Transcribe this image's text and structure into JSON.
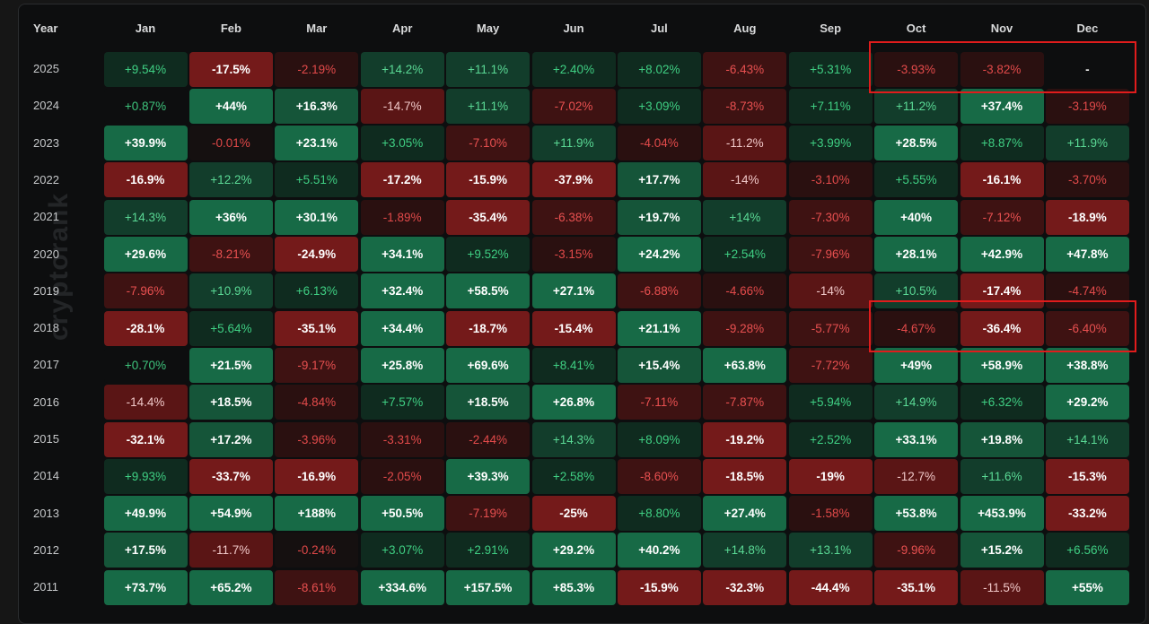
{
  "chart_data": {
    "type": "table",
    "title": "",
    "row_header_label": "Year",
    "columns": [
      "Jan",
      "Feb",
      "Mar",
      "Apr",
      "May",
      "Jun",
      "Jul",
      "Aug",
      "Sep",
      "Oct",
      "Nov",
      "Dec"
    ],
    "rows": [
      {
        "year": "2025",
        "values": [
          "+9.54%",
          "-17.5%",
          "-2.19%",
          "+14.2%",
          "+11.1%",
          "+2.40%",
          "+8.02%",
          "-6.43%",
          "+5.31%",
          "-3.93%",
          "-3.82%",
          "-"
        ]
      },
      {
        "year": "2024",
        "values": [
          "+0.87%",
          "+44%",
          "+16.3%",
          "-14.7%",
          "+11.1%",
          "-7.02%",
          "+3.09%",
          "-8.73%",
          "+7.11%",
          "+11.2%",
          "+37.4%",
          "-3.19%"
        ]
      },
      {
        "year": "2023",
        "values": [
          "+39.9%",
          "-0.01%",
          "+23.1%",
          "+3.05%",
          "-7.10%",
          "+11.9%",
          "-4.04%",
          "-11.2%",
          "+3.99%",
          "+28.5%",
          "+8.87%",
          "+11.9%"
        ]
      },
      {
        "year": "2022",
        "values": [
          "-16.9%",
          "+12.2%",
          "+5.51%",
          "-17.2%",
          "-15.9%",
          "-37.9%",
          "+17.7%",
          "-14%",
          "-3.10%",
          "+5.55%",
          "-16.1%",
          "-3.70%"
        ]
      },
      {
        "year": "2021",
        "values": [
          "+14.3%",
          "+36%",
          "+30.1%",
          "-1.89%",
          "-35.4%",
          "-6.38%",
          "+19.7%",
          "+14%",
          "-7.30%",
          "+40%",
          "-7.12%",
          "-18.9%"
        ]
      },
      {
        "year": "2020",
        "values": [
          "+29.6%",
          "-8.21%",
          "-24.9%",
          "+34.1%",
          "+9.52%",
          "-3.15%",
          "+24.2%",
          "+2.54%",
          "-7.96%",
          "+28.1%",
          "+42.9%",
          "+47.8%"
        ]
      },
      {
        "year": "2019",
        "values": [
          "-7.96%",
          "+10.9%",
          "+6.13%",
          "+32.4%",
          "+58.5%",
          "+27.1%",
          "-6.88%",
          "-4.66%",
          "-14%",
          "+10.5%",
          "-17.4%",
          "-4.74%"
        ]
      },
      {
        "year": "2018",
        "values": [
          "-28.1%",
          "+5.64%",
          "-35.1%",
          "+34.4%",
          "-18.7%",
          "-15.4%",
          "+21.1%",
          "-9.28%",
          "-5.77%",
          "-4.67%",
          "-36.4%",
          "-6.40%"
        ]
      },
      {
        "year": "2017",
        "values": [
          "+0.70%",
          "+21.5%",
          "-9.17%",
          "+25.8%",
          "+69.6%",
          "+8.41%",
          "+15.4%",
          "+63.8%",
          "-7.72%",
          "+49%",
          "+58.9%",
          "+38.8%"
        ]
      },
      {
        "year": "2016",
        "values": [
          "-14.4%",
          "+18.5%",
          "-4.84%",
          "+7.57%",
          "+18.5%",
          "+26.8%",
          "-7.11%",
          "-7.87%",
          "+5.94%",
          "+14.9%",
          "+6.32%",
          "+29.2%"
        ]
      },
      {
        "year": "2015",
        "values": [
          "-32.1%",
          "+17.2%",
          "-3.96%",
          "-3.31%",
          "-2.44%",
          "+14.3%",
          "+8.09%",
          "-19.2%",
          "+2.52%",
          "+33.1%",
          "+19.8%",
          "+14.1%"
        ]
      },
      {
        "year": "2014",
        "values": [
          "+9.93%",
          "-33.7%",
          "-16.9%",
          "-2.05%",
          "+39.3%",
          "+2.58%",
          "-8.60%",
          "-18.5%",
          "-19%",
          "-12.7%",
          "+11.6%",
          "-15.3%"
        ]
      },
      {
        "year": "2013",
        "values": [
          "+49.9%",
          "+54.9%",
          "+188%",
          "+50.5%",
          "-7.19%",
          "-25%",
          "+8.80%",
          "+27.4%",
          "-1.58%",
          "+53.8%",
          "+453.9%",
          "-33.2%"
        ]
      },
      {
        "year": "2012",
        "values": [
          "+17.5%",
          "-11.7%",
          "-0.24%",
          "+3.07%",
          "+2.91%",
          "+29.2%",
          "+40.2%",
          "+14.8%",
          "+13.1%",
          "-9.96%",
          "+15.2%",
          "+6.56%"
        ]
      },
      {
        "year": "2011",
        "values": [
          "+73.7%",
          "+65.2%",
          "-8.61%",
          "+334.6%",
          "+157.5%",
          "+85.3%",
          "-15.9%",
          "-32.3%",
          "-44.4%",
          "-35.1%",
          "-11.5%",
          "+55%"
        ]
      }
    ],
    "highlights": [
      {
        "rows": [
          "2025"
        ],
        "columns": [
          "Oct",
          "Nov",
          "Dec"
        ]
      },
      {
        "rows": [
          "2018"
        ],
        "columns": [
          "Oct",
          "Nov",
          "Dec"
        ]
      }
    ]
  },
  "watermark": "cryptorank",
  "colors": {
    "panel_bg": "#0d0e0f",
    "highlight": "#e01c1c",
    "positive_text_light": "#4fd68e",
    "negative_text_light": "#ff5a5a"
  }
}
